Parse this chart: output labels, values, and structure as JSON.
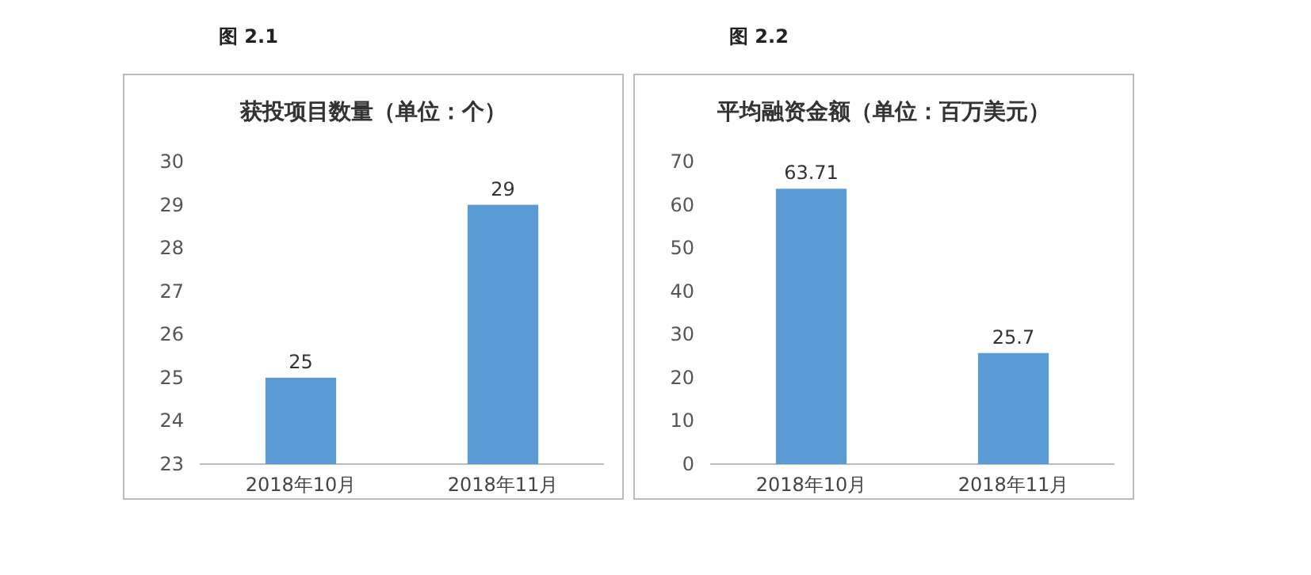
{
  "chart_data": [
    {
      "type": "bar",
      "annotations": [
        "图 2.1"
      ],
      "title": "获投项目数量（单位：个）",
      "categories": [
        "2018年10月",
        "2018年11月"
      ],
      "values": [
        25,
        29
      ],
      "color": "#5b9bd5",
      "ylim": [
        23,
        30
      ],
      "yticks": [
        23,
        24,
        25,
        26,
        27,
        28,
        29,
        30
      ],
      "data_labels": true
    },
    {
      "type": "bar",
      "annotations": [
        "图 2.2"
      ],
      "title": "平均融资金额（单位：百万美元）",
      "categories": [
        "2018年10月",
        "2018年11月"
      ],
      "values": [
        63.71,
        25.7
      ],
      "color": "#5b9bd5",
      "ylim": [
        0,
        70
      ],
      "yticks": [
        0,
        10,
        20,
        30,
        40,
        50,
        60,
        70
      ],
      "data_labels": true
    }
  ]
}
